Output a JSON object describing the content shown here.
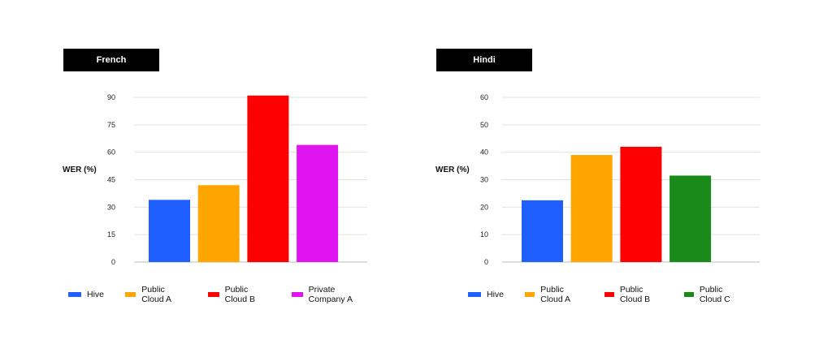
{
  "chart_data": [
    {
      "type": "bar",
      "title": "French",
      "ylabel": "WER (%)",
      "xlabel": "",
      "ylim": [
        0,
        90
      ],
      "yticks": [
        0,
        15,
        30,
        45,
        60,
        75,
        90
      ],
      "grid": true,
      "legend_position": "bottom",
      "categories": [
        "Hive",
        "Public Cloud A",
        "Public Cloud B",
        "Private Company A"
      ],
      "values": [
        34,
        42,
        91,
        64
      ],
      "colors": [
        "#1f5eff",
        "#ffa500",
        "#ff0000",
        "#e014f0"
      ]
    },
    {
      "type": "bar",
      "title": "Hindi",
      "ylabel": "WER (%)",
      "xlabel": "",
      "ylim": [
        0,
        60
      ],
      "yticks": [
        0,
        10,
        20,
        30,
        40,
        50,
        60
      ],
      "grid": true,
      "legend_position": "bottom",
      "categories": [
        "Hive",
        "Public Cloud A",
        "Public Cloud B",
        "Public Cloud C"
      ],
      "values": [
        22.5,
        39,
        42,
        31.5
      ],
      "colors": [
        "#1f5eff",
        "#ffa500",
        "#ff0000",
        "#1a8a1a"
      ]
    }
  ]
}
